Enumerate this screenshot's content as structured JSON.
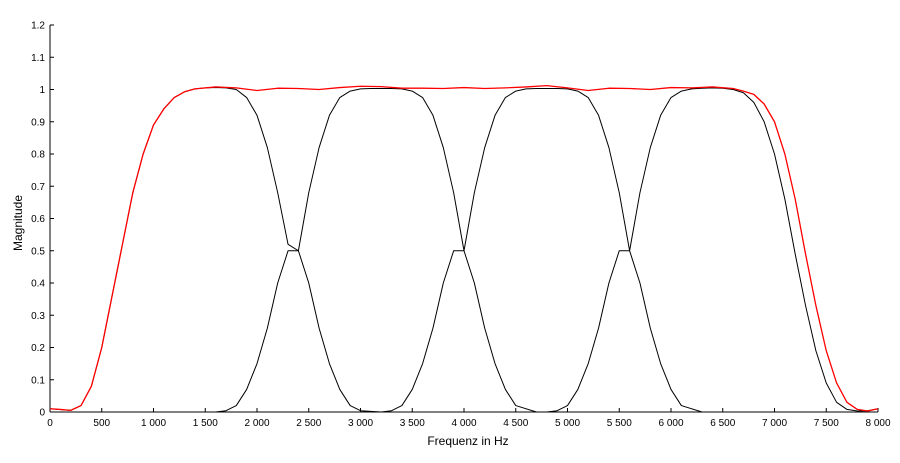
{
  "chart_data": {
    "type": "line",
    "xlabel": "Frequenz in Hz",
    "ylabel": "Magnitude",
    "xlim": [
      0,
      8000
    ],
    "ylim": [
      0,
      1.2
    ],
    "x_ticks": [
      0,
      500,
      1000,
      1500,
      2000,
      2500,
      3000,
      3500,
      4000,
      4500,
      5000,
      5500,
      6000,
      6500,
      7000,
      7500,
      8000
    ],
    "x_tick_labels": [
      "0",
      "500",
      "1 000",
      "1 500",
      "2 000",
      "2 500",
      "3 000",
      "3 500",
      "4 000",
      "4 500",
      "5 000",
      "5 500",
      "6 000",
      "6 500",
      "7 000",
      "7 500",
      "8 000"
    ],
    "y_ticks": [
      0,
      0.1,
      0.2,
      0.3,
      0.4,
      0.5,
      0.6,
      0.7,
      0.8,
      0.9,
      1,
      1.1,
      1.2
    ],
    "y_tick_labels": [
      "0",
      "0.1",
      "0.2",
      "0.3",
      "0.4",
      "0.5",
      "0.6",
      "0.7",
      "0.8",
      "0.9",
      "1",
      "1.1",
      "1.2"
    ],
    "grid": false,
    "legend": "none",
    "colors": {
      "bands": "#000000",
      "sum": "#ff0000"
    },
    "series": [
      {
        "color": "#000000",
        "x": [
          0,
          200,
          300,
          400,
          500,
          600,
          700,
          800,
          900,
          1000,
          1100,
          1200,
          1300,
          1400,
          1500,
          1600,
          1700,
          1800,
          1900,
          2000,
          2100,
          2200,
          2300,
          2400,
          2500,
          2600,
          2700,
          2800,
          2900,
          3000,
          3200
        ],
        "y": [
          0.01,
          0.005,
          0.02,
          0.08,
          0.2,
          0.36,
          0.52,
          0.68,
          0.8,
          0.89,
          0.94,
          0.975,
          0.993,
          1.002,
          1.005,
          1.006,
          1.005,
          1.0,
          0.975,
          0.92,
          0.82,
          0.68,
          0.52,
          0.5,
          0.4,
          0.26,
          0.15,
          0.07,
          0.02,
          0.004,
          0.0
        ]
      },
      {
        "color": "#000000",
        "x": [
          0,
          1600,
          1700,
          1800,
          1900,
          2000,
          2100,
          2200,
          2300,
          2400,
          2500,
          2600,
          2700,
          2800,
          2900,
          3000,
          3100,
          3200,
          3300,
          3400,
          3500,
          3600,
          3700,
          3800,
          3900,
          4000,
          4100,
          4200,
          4300,
          4400,
          4500,
          4700,
          8000
        ],
        "y": [
          0.0,
          0.0,
          0.004,
          0.02,
          0.07,
          0.15,
          0.26,
          0.4,
          0.5,
          0.5,
          0.68,
          0.82,
          0.92,
          0.975,
          0.995,
          1.002,
          1.003,
          1.003,
          1.003,
          1.002,
          0.995,
          0.975,
          0.92,
          0.82,
          0.68,
          0.5,
          0.4,
          0.26,
          0.15,
          0.07,
          0.02,
          0.0,
          0.0
        ]
      },
      {
        "color": "#000000",
        "x": [
          0,
          3200,
          3300,
          3400,
          3500,
          3600,
          3700,
          3800,
          3900,
          4000,
          4100,
          4200,
          4300,
          4400,
          4500,
          4600,
          4700,
          4800,
          4900,
          5000,
          5100,
          5200,
          5300,
          5400,
          5500,
          5600,
          5700,
          5800,
          5900,
          6000,
          6100,
          6300,
          8000
        ],
        "y": [
          0.0,
          0.0,
          0.004,
          0.02,
          0.07,
          0.15,
          0.26,
          0.4,
          0.5,
          0.5,
          0.68,
          0.82,
          0.92,
          0.975,
          0.995,
          1.002,
          1.003,
          1.003,
          1.003,
          1.002,
          0.995,
          0.975,
          0.92,
          0.82,
          0.68,
          0.5,
          0.4,
          0.26,
          0.15,
          0.07,
          0.02,
          0.0,
          0.0
        ]
      },
      {
        "color": "#000000",
        "x": [
          0,
          4800,
          4900,
          5000,
          5100,
          5200,
          5300,
          5400,
          5500,
          5600,
          5700,
          5800,
          5900,
          6000,
          6100,
          6200,
          6300,
          6400,
          6500,
          6600,
          6700,
          6800,
          6900,
          7000,
          7100,
          7200,
          7300,
          7400,
          7500,
          7600,
          7700,
          7800,
          7900,
          8000
        ],
        "y": [
          0.0,
          0.0,
          0.004,
          0.02,
          0.07,
          0.15,
          0.26,
          0.4,
          0.5,
          0.5,
          0.68,
          0.82,
          0.92,
          0.975,
          0.995,
          1.002,
          1.004,
          1.005,
          1.004,
          1.0,
          0.99,
          0.96,
          0.9,
          0.8,
          0.66,
          0.49,
          0.33,
          0.19,
          0.09,
          0.03,
          0.008,
          0.003,
          0.004,
          0.01
        ]
      },
      {
        "color": "#ff0000",
        "x": [
          0,
          100,
          200,
          300,
          400,
          500,
          600,
          700,
          800,
          900,
          1000,
          1100,
          1200,
          1300,
          1400,
          1600,
          1800,
          2000,
          2200,
          2400,
          2600,
          2800,
          3000,
          3200,
          3400,
          3600,
          3800,
          4000,
          4200,
          4400,
          4600,
          4800,
          5000,
          5200,
          5400,
          5600,
          5800,
          6000,
          6200,
          6400,
          6600,
          6700,
          6800,
          6900,
          7000,
          7100,
          7200,
          7300,
          7400,
          7500,
          7600,
          7700,
          7800,
          7900,
          8000
        ],
        "y": [
          0.01,
          0.008,
          0.005,
          0.02,
          0.08,
          0.2,
          0.36,
          0.52,
          0.68,
          0.8,
          0.89,
          0.94,
          0.975,
          0.993,
          1.002,
          1.008,
          1.005,
          0.997,
          1.004,
          1.003,
          1.0,
          1.006,
          1.01,
          1.009,
          1.004,
          1.004,
          1.003,
          1.006,
          1.003,
          1.005,
          1.008,
          1.012,
          1.005,
          0.997,
          1.004,
          1.003,
          1.0,
          1.006,
          1.005,
          1.008,
          1.003,
          0.995,
          0.985,
          0.955,
          0.9,
          0.8,
          0.66,
          0.49,
          0.33,
          0.19,
          0.09,
          0.03,
          0.008,
          0.003,
          0.01
        ]
      }
    ]
  }
}
